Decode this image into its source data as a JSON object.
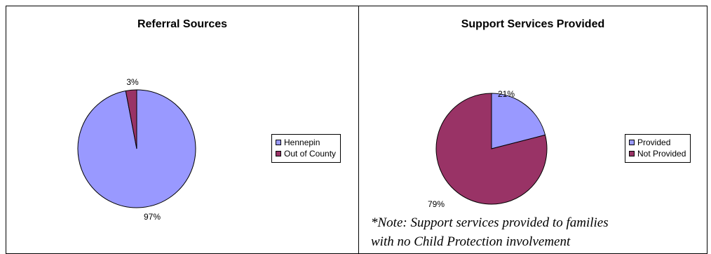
{
  "chart_data": [
    {
      "type": "pie",
      "title": "Referral Sources",
      "slices": [
        {
          "label": "Hennepin",
          "value": 97,
          "pct_label": "97%",
          "color": "#9999ff"
        },
        {
          "label": "Out of County",
          "value": 3,
          "pct_label": "3%",
          "color": "#993366"
        }
      ],
      "legend": "right"
    },
    {
      "type": "pie",
      "title": "Support Services Provided",
      "slices": [
        {
          "label": "Provided",
          "value": 21,
          "pct_label": "21%",
          "color": "#9999ff"
        },
        {
          "label": "Not Provided",
          "value": 79,
          "pct_label": "79%",
          "color": "#993366"
        }
      ],
      "legend": "right"
    }
  ],
  "note": {
    "line1": "*Note: Support services provided to families",
    "line2": "with no Child Protection involvement"
  }
}
